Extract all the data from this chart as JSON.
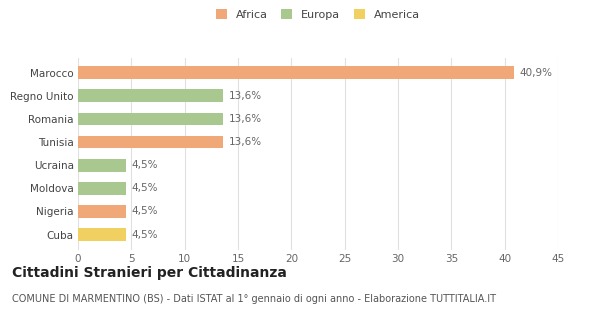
{
  "categories": [
    "Cuba",
    "Nigeria",
    "Moldova",
    "Ucraina",
    "Tunisia",
    "Romania",
    "Regno Unito",
    "Marocco"
  ],
  "values": [
    4.5,
    4.5,
    4.5,
    4.5,
    13.6,
    13.6,
    13.6,
    40.9
  ],
  "colors": [
    "#f0d060",
    "#f0a878",
    "#a8c890",
    "#a8c890",
    "#f0a878",
    "#a8c890",
    "#a8c890",
    "#f0a878"
  ],
  "value_labels": [
    "4,5%",
    "4,5%",
    "4,5%",
    "4,5%",
    "13,6%",
    "13,6%",
    "13,6%",
    "40,9%"
  ],
  "xlim": [
    0,
    45
  ],
  "xticks": [
    0,
    5,
    10,
    15,
    20,
    25,
    30,
    35,
    40,
    45
  ],
  "title": "Cittadini Stranieri per Cittadinanza",
  "subtitle": "COMUNE DI MARMENTINO (BS) - Dati ISTAT al 1° gennaio di ogni anno - Elaborazione TUTTITALIA.IT",
  "legend_labels": [
    "Africa",
    "Europa",
    "America"
  ],
  "legend_colors": [
    "#f0a878",
    "#a8c890",
    "#f0d060"
  ],
  "background_color": "#ffffff",
  "grid_color": "#e0e0e0",
  "bar_height": 0.55,
  "label_fontsize": 7.5,
  "tick_fontsize": 7.5,
  "title_fontsize": 10,
  "subtitle_fontsize": 7,
  "legend_fontsize": 8
}
